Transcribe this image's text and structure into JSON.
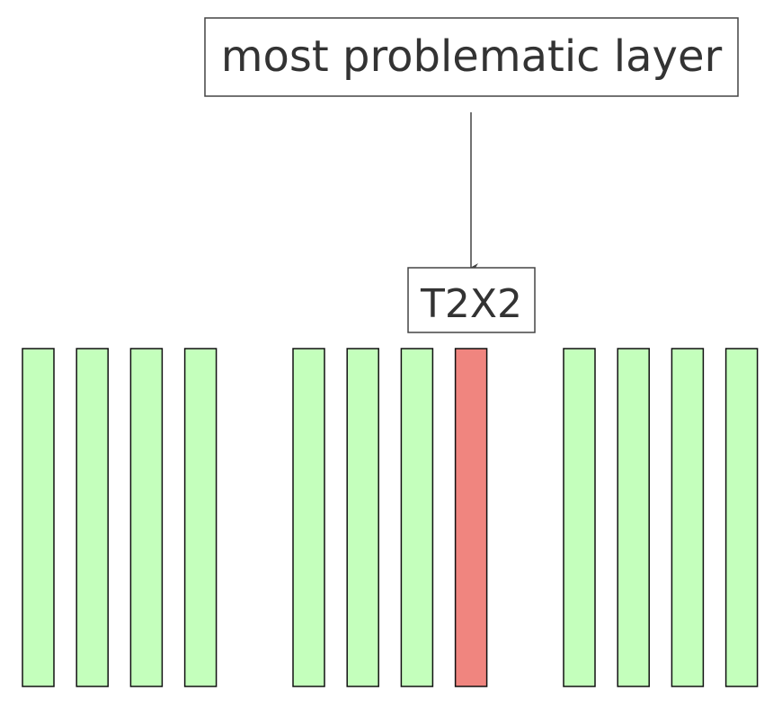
{
  "annotation": {
    "text": "most problematic layer"
  },
  "target": {
    "text": "T2X2"
  },
  "layers": {
    "groups": [
      {
        "states": [
          "ok",
          "ok",
          "ok",
          "ok"
        ]
      },
      {
        "states": [
          "ok",
          "ok",
          "ok",
          "problem"
        ]
      },
      {
        "states": [
          "ok",
          "ok",
          "ok",
          "ok"
        ]
      }
    ]
  },
  "colors": {
    "ok_fill": "#c4ffbc",
    "problem_fill": "#f0857f",
    "stroke": "#111111",
    "box_stroke": "#444444",
    "text": "#333333",
    "arrow": "#444444"
  }
}
